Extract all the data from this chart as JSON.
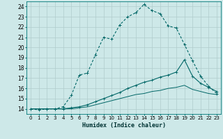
{
  "xlabel": "Humidex (Indice chaleur)",
  "xlim": [
    -0.5,
    23.5
  ],
  "ylim": [
    13.5,
    24.5
  ],
  "xticks": [
    0,
    1,
    2,
    3,
    4,
    5,
    6,
    7,
    8,
    9,
    10,
    11,
    12,
    13,
    14,
    15,
    16,
    17,
    18,
    19,
    20,
    21,
    22,
    23
  ],
  "yticks": [
    14,
    15,
    16,
    17,
    18,
    19,
    20,
    21,
    22,
    23,
    24
  ],
  "background_color": "#cde8e8",
  "grid_color": "#b0cccc",
  "line_color": "#006666",
  "curve1_x": [
    0,
    1,
    2,
    3,
    4,
    5,
    6,
    7,
    8,
    9,
    10,
    11,
    12,
    13,
    14,
    15,
    16,
    17,
    18,
    19,
    20,
    21,
    22,
    23
  ],
  "curve1_y": [
    14.0,
    13.9,
    14.0,
    14.0,
    14.2,
    15.3,
    17.3,
    17.5,
    19.3,
    21.0,
    20.8,
    22.2,
    23.0,
    23.4,
    24.2,
    23.6,
    23.3,
    22.1,
    21.9,
    20.3,
    18.7,
    17.2,
    16.2,
    15.5
  ],
  "curve2_x": [
    0,
    1,
    2,
    3,
    4,
    5,
    6,
    7,
    8,
    9,
    10,
    11,
    12,
    13,
    14,
    15,
    16,
    17,
    18,
    19,
    20,
    21,
    22,
    23
  ],
  "curve2_y": [
    14.0,
    14.0,
    14.0,
    14.0,
    14.0,
    14.1,
    14.2,
    14.4,
    14.7,
    15.0,
    15.3,
    15.6,
    16.0,
    16.3,
    16.6,
    16.8,
    17.1,
    17.3,
    17.6,
    18.8,
    17.2,
    16.5,
    16.1,
    15.7
  ],
  "curve3_x": [
    0,
    1,
    2,
    3,
    4,
    5,
    6,
    7,
    8,
    9,
    10,
    11,
    12,
    13,
    14,
    15,
    16,
    17,
    18,
    19,
    20,
    21,
    22,
    23
  ],
  "curve3_y": [
    14.0,
    14.0,
    14.0,
    14.0,
    14.0,
    14.0,
    14.1,
    14.2,
    14.4,
    14.6,
    14.8,
    15.0,
    15.2,
    15.4,
    15.5,
    15.7,
    15.8,
    16.0,
    16.1,
    16.3,
    15.9,
    15.7,
    15.5,
    15.4
  ]
}
